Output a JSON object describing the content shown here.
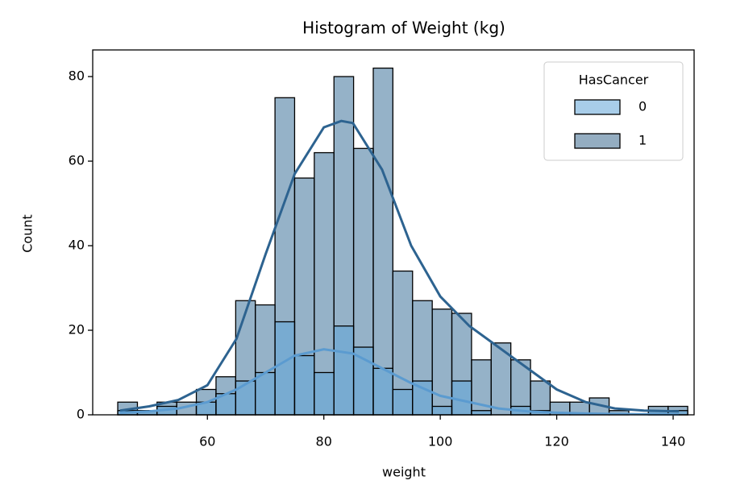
{
  "chart_data": {
    "type": "histogram",
    "title": "Histogram of Weight (kg)",
    "xlabel": "weight",
    "ylabel": "Count",
    "legend_title": "HasCancer",
    "legend_position": "upper right",
    "bins": [
      44.6,
      47.98,
      51.35,
      54.73,
      58.1,
      61.48,
      64.86,
      68.23,
      71.61,
      74.98,
      78.36,
      81.74,
      85.11,
      88.49,
      91.86,
      95.24,
      98.62,
      101.99,
      105.37,
      108.74,
      112.12,
      115.5,
      118.87,
      122.25,
      125.62,
      129.0,
      132.38,
      135.75,
      139.13,
      142.5
    ],
    "series": [
      {
        "name": "0",
        "color": "#5ba3d9",
        "line_color": "#5b9bd0",
        "legend_color": "#a8cde9",
        "values": [
          1,
          1,
          2,
          0,
          3,
          5,
          8,
          10,
          22,
          14,
          10,
          21,
          16,
          11,
          6,
          8,
          2,
          8,
          1,
          0,
          2,
          1,
          0,
          0,
          0,
          0,
          0,
          1,
          1
        ],
        "kde_x": [
          45,
          50,
          55,
          60,
          65,
          70,
          75,
          80,
          85,
          90,
          95,
          100,
          105,
          110,
          115,
          120,
          125,
          130,
          141
        ],
        "kde_y": [
          0.5,
          0.8,
          1.5,
          3,
          6,
          10,
          14,
          15.5,
          14.5,
          11,
          7.5,
          4.5,
          3,
          1.5,
          0.8,
          0.5,
          0.3,
          0.2,
          0.1
        ]
      },
      {
        "name": "1",
        "color": "#2b6591",
        "line_color": "#2d6390",
        "legend_color": "#94adc1",
        "values": [
          3,
          1,
          3,
          3,
          6,
          9,
          27,
          26,
          75,
          56,
          62,
          80,
          63,
          82,
          34,
          27,
          25,
          24,
          13,
          17,
          13,
          8,
          3,
          3,
          4,
          1,
          0,
          2,
          2
        ],
        "kde_x": [
          45,
          50,
          55,
          60,
          65,
          70,
          75,
          80,
          83,
          85,
          90,
          95,
          100,
          105,
          110,
          115,
          120,
          125,
          130,
          135,
          141
        ],
        "kde_y": [
          1,
          2,
          3.5,
          7,
          18,
          38,
          57,
          68,
          69.5,
          69,
          58,
          40,
          28,
          21,
          16,
          11,
          6,
          3,
          1.5,
          1,
          0.8
        ]
      }
    ],
    "xlim": [
      40.3,
      143.6
    ],
    "ylim": [
      0,
      86.3
    ],
    "xticks": [
      60,
      80,
      100,
      120,
      140
    ],
    "yticks": [
      0,
      20,
      40,
      60,
      80
    ]
  }
}
